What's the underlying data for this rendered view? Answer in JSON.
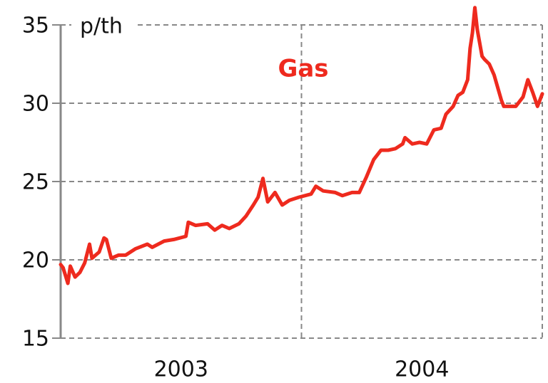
{
  "chart_data": {
    "type": "line",
    "title": "Gas",
    "y_label": "p/th",
    "categories": [
      "2003",
      "2004"
    ],
    "color": "#ee2a1e",
    "xlim": [
      2003,
      2005
    ],
    "ylim": [
      15,
      35
    ],
    "yticks": [
      15,
      20,
      25,
      30,
      35
    ],
    "grid": true,
    "x": [
      2003.0,
      2003.01,
      2003.03,
      2003.04,
      2003.06,
      2003.08,
      2003.1,
      2003.12,
      2003.13,
      2003.16,
      2003.18,
      2003.19,
      2003.21,
      2003.24,
      2003.27,
      2003.31,
      2003.36,
      2003.38,
      2003.43,
      2003.47,
      2003.52,
      2003.53,
      2003.56,
      2003.61,
      2003.64,
      2003.67,
      2003.7,
      2003.74,
      2003.77,
      2003.8,
      2003.82,
      2003.84,
      2003.86,
      2003.89,
      2003.92,
      2003.95,
      2003.99,
      2004.04,
      2004.06,
      2004.09,
      2004.14,
      2004.17,
      2004.21,
      2004.24,
      2004.27,
      2004.3,
      2004.33,
      2004.36,
      2004.39,
      2004.42,
      2004.43,
      2004.46,
      2004.49,
      2004.52,
      2004.55,
      2004.58,
      2004.6,
      2004.63,
      2004.65,
      2004.67,
      2004.69,
      2004.7,
      2004.71,
      2004.72,
      2004.73,
      2004.75,
      2004.76,
      2004.78,
      2004.8,
      2004.83,
      2004.84,
      2004.87,
      2004.89,
      2004.92,
      2004.94,
      2004.96,
      2004.98,
      2005.0
    ],
    "values": [
      19.7,
      19.5,
      18.5,
      19.6,
      18.9,
      19.2,
      19.8,
      21.0,
      20.1,
      20.5,
      21.4,
      21.3,
      20.1,
      20.3,
      20.3,
      20.7,
      21.0,
      20.8,
      21.2,
      21.3,
      21.5,
      22.4,
      22.2,
      22.3,
      21.9,
      22.2,
      22.0,
      22.3,
      22.8,
      23.5,
      24.0,
      25.2,
      23.7,
      24.3,
      23.5,
      23.8,
      24.0,
      24.2,
      24.7,
      24.4,
      24.3,
      24.1,
      24.3,
      24.3,
      25.3,
      26.4,
      27.0,
      27.0,
      27.1,
      27.4,
      27.8,
      27.4,
      27.5,
      27.4,
      28.3,
      28.4,
      29.3,
      29.8,
      30.5,
      30.7,
      31.5,
      33.5,
      34.5,
      36.1,
      34.7,
      33.0,
      32.8,
      32.5,
      31.8,
      30.2,
      29.8,
      29.8,
      29.8,
      30.4,
      31.5,
      30.7,
      29.8,
      30.6
    ]
  }
}
